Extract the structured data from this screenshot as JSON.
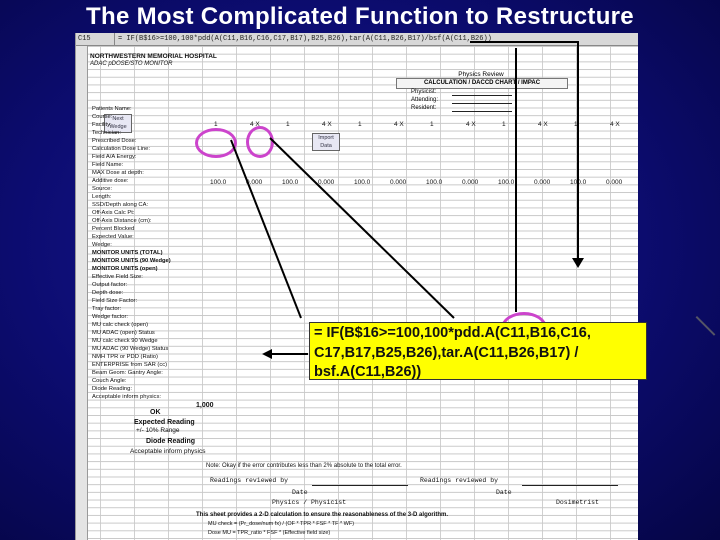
{
  "slide": {
    "title": "The Most Complicated Function to Restructure"
  },
  "spreadsheet": {
    "cell_ref": "C15",
    "formula_bar": "= IF(B$16>=100,100*pdd(A(C11,B16,C16,C17,B17),B25,B26),tar(A(C11,B26,B17)/bsf(A(C11,B26))",
    "hospital_name": "NORTHWESTERN MEMORIAL HOSPITAL",
    "hospital_sub": "ADAC pDOSE/STO MONITOR",
    "physics_review": "Physics Review",
    "calc_bar": "CALCULATION / DACCD CHART / IMPAC",
    "page_button": "Next Wedge",
    "import_button": "Import Data",
    "left_labels": [
      "Patients Name:",
      "Course:",
      "Facility:",
      "Technician:",
      "Prescribed Dose:",
      "Calculation Dose Line:",
      "Field A/A Energy:",
      "Field Name:",
      "MAX Dose at depth:",
      "Additive dose:",
      "Source:",
      "Length:",
      "SSD/Depth along CA:",
      "Off-Axis Calc Pt:",
      "Off-Axis Distance (cm):",
      "Percent Blocked",
      "Expected Value:",
      "Wedge:",
      "MONITOR UNITS (TOTAL)",
      "MONITOR UNITS (90 Wedge)",
      "MONITOR UNITS (open)",
      "Effective Field Size:",
      "Output factor:",
      "Depth dose:",
      "Field Size Factor:",
      "Tray factor:",
      "Wedge factor:",
      "MU calc check (open)",
      "MU ADAC (open) Status",
      "MU calc check 90 Wedge",
      "MU ADAC (90 Wedge) Status",
      "NMH TPR or PDD (Ratio)",
      "ENTERPRISE from SAR (cc)",
      "Beam Geom: Gantry Angle:",
      "Couch Angle:",
      "Diode Reading:",
      "Acceptable inform physics:"
    ],
    "right_labels": [
      "Physicist:",
      "Attending:",
      "Resident:"
    ],
    "col_vals": [
      "1",
      "4 X",
      "1",
      "4 X",
      "1",
      "4 X",
      "1",
      "4 X",
      "1",
      "4 X",
      "1",
      "4 X"
    ],
    "row_100": "100.0",
    "row_0": "0.000",
    "big_value": "1,000",
    "ok_text": "OK",
    "expected_reading": "Expected Reading",
    "range_text": "+/- 10% Range",
    "diode_reading": "Diode Reading",
    "accept_text": "Acceptable inform physics",
    "note": "Note: Okay if the error contributes less than 2% absolute to the total error.",
    "sig_1": "Readings reviewed by",
    "sig_2": "Readings reviewed by",
    "sig_date": "Date",
    "sig_phys": "Physics / Physicist",
    "sig_date2": "Date",
    "sig_dosi": "Dosimetrist",
    "footer_1": "This sheet provides a 2-D calculation to ensure the reasonableness of the 3-D algorithm.",
    "footer_2": "MU check = (Pr_dose/num fx) / (OF * TPR * FSF * TF * WF)",
    "footer_3": "Dose MU = TPR_ratio * FSF * (Effective field size)"
  },
  "callout": {
    "formula_text": "= IF(B$16>=100,100*pdd.A(C11,B16,C16, C17,B17,B25,B26),tar.A(C11,B26,B17) / bsf.A(C11,B26))"
  },
  "colors": {
    "background": "#0c0c70",
    "callout_bg": "#ffff00",
    "ring": "#cc44cc"
  }
}
